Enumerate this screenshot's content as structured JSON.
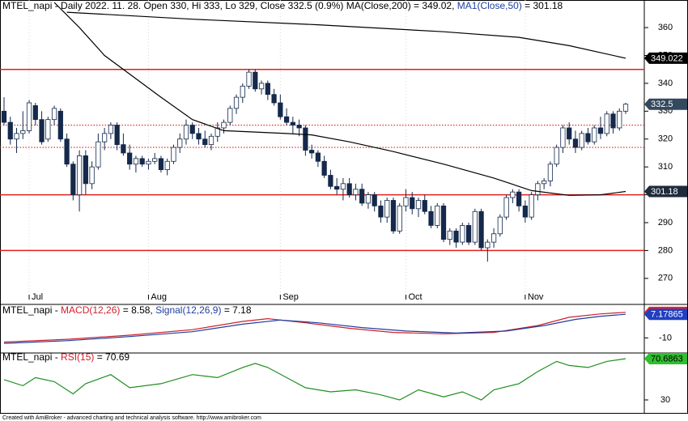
{
  "chart_data": [
    {
      "type": "candlestick",
      "title_parts": [
        {
          "text": "MTEL_napi - Daily 2022. 11. 28. Open 330, Hi 333, Lo 329, Close 332.5 (0.9%) MA(Close,200) = 349.02, ",
          "color": "#000000"
        },
        {
          "text": "MA1(Close,50)",
          "color": "#1f3f9f"
        },
        {
          "text": " = 301.18",
          "color": "#000000"
        }
      ],
      "up_color": "#ffffff",
      "down_color": "#14294b",
      "outline": "#14294b",
      "ohlc": [
        [
          330,
          335,
          325,
          326
        ],
        [
          326,
          328,
          318,
          320
        ],
        [
          320,
          324,
          315,
          322
        ],
        [
          322,
          330,
          320,
          323
        ],
        [
          323,
          334,
          322,
          333
        ],
        [
          332,
          333,
          325,
          327
        ],
        [
          327,
          330,
          318,
          319
        ],
        [
          320,
          328,
          319,
          327
        ],
        [
          327,
          332,
          325,
          331
        ],
        [
          330,
          331,
          319,
          320
        ],
        [
          320,
          322,
          310,
          311
        ],
        [
          311,
          312,
          298,
          300
        ],
        [
          300,
          316,
          294,
          314
        ],
        [
          314,
          316,
          300,
          304
        ],
        [
          304,
          312,
          302,
          310
        ],
        [
          310,
          322,
          309,
          319
        ],
        [
          319,
          324,
          316,
          322
        ],
        [
          322,
          326,
          320,
          325
        ],
        [
          325,
          326,
          316,
          318
        ],
        [
          318,
          322,
          314,
          315
        ],
        [
          315,
          318,
          309,
          311
        ],
        [
          311,
          314,
          308,
          313
        ],
        [
          313,
          314,
          310,
          311
        ],
        [
          311,
          313,
          309,
          312
        ],
        [
          312,
          315,
          311,
          313
        ],
        [
          313,
          314,
          308,
          309
        ],
        [
          309,
          313,
          307,
          312
        ],
        [
          312,
          318,
          311,
          317
        ],
        [
          317,
          322,
          315,
          320
        ],
        [
          320,
          327,
          318,
          325
        ],
        [
          325,
          326,
          320,
          322
        ],
        [
          322,
          324,
          318,
          320
        ],
        [
          320,
          323,
          317,
          318
        ],
        [
          318,
          322,
          316,
          321
        ],
        [
          321,
          326,
          319,
          324
        ],
        [
          324,
          327,
          322,
          326
        ],
        [
          326,
          332,
          325,
          331
        ],
        [
          331,
          336,
          329,
          335
        ],
        [
          335,
          340,
          333,
          339
        ],
        [
          339,
          345,
          338,
          344
        ],
        [
          344,
          345,
          337,
          338
        ],
        [
          338,
          341,
          336,
          340
        ],
        [
          340,
          341,
          334,
          336
        ],
        [
          336,
          338,
          332,
          333
        ],
        [
          333,
          336,
          327,
          328
        ],
        [
          328,
          331,
          325,
          326
        ],
        [
          326,
          328,
          322,
          325
        ],
        [
          325,
          327,
          321,
          324
        ],
        [
          324,
          325,
          314,
          316
        ],
        [
          316,
          318,
          313,
          315
        ],
        [
          315,
          316,
          310,
          312
        ],
        [
          312,
          314,
          306,
          307
        ],
        [
          307,
          309,
          302,
          303
        ],
        [
          303,
          306,
          300,
          302
        ],
        [
          302,
          306,
          298,
          304
        ],
        [
          304,
          306,
          299,
          300
        ],
        [
          300,
          304,
          298,
          302
        ],
        [
          302,
          304,
          296,
          297
        ],
        [
          297,
          301,
          295,
          300
        ],
        [
          300,
          301,
          294,
          296
        ],
        [
          296,
          298,
          290,
          292
        ],
        [
          292,
          299,
          290,
          298
        ],
        [
          298,
          299,
          286,
          287
        ],
        [
          287,
          297,
          286,
          296
        ],
        [
          296,
          302,
          294,
          299
        ],
        [
          299,
          301,
          293,
          295
        ],
        [
          295,
          299,
          292,
          298
        ],
        [
          298,
          300,
          293,
          294
        ],
        [
          294,
          296,
          288,
          289
        ],
        [
          289,
          297,
          288,
          296
        ],
        [
          296,
          297,
          283,
          284
        ],
        [
          284,
          288,
          282,
          287
        ],
        [
          287,
          288,
          281,
          283
        ],
        [
          283,
          290,
          282,
          289
        ],
        [
          289,
          290,
          282,
          283
        ],
        [
          283,
          295,
          282,
          294
        ],
        [
          294,
          295,
          280,
          281
        ],
        [
          281,
          284,
          276,
          283
        ],
        [
          283,
          288,
          281,
          286
        ],
        [
          286,
          293,
          285,
          292
        ],
        [
          292,
          300,
          291,
          299
        ],
        [
          299,
          302,
          297,
          301
        ],
        [
          301,
          302,
          294,
          296
        ],
        [
          296,
          298,
          290,
          292
        ],
        [
          292,
          301,
          291,
          300
        ],
        [
          300,
          305,
          298,
          304
        ],
        [
          304,
          306,
          302,
          305
        ],
        [
          305,
          312,
          303,
          311
        ],
        [
          311,
          318,
          310,
          317
        ],
        [
          317,
          325,
          315,
          324
        ],
        [
          324,
          326,
          318,
          320
        ],
        [
          320,
          323,
          315,
          317
        ],
        [
          317,
          323,
          316,
          322
        ],
        [
          322,
          324,
          318,
          319
        ],
        [
          319,
          325,
          318,
          324
        ],
        [
          324,
          328,
          320,
          322
        ],
        [
          322,
          330,
          321,
          329
        ],
        [
          329,
          330,
          322,
          324
        ],
        [
          324,
          331,
          323,
          330
        ],
        [
          330,
          333,
          329,
          332.5
        ]
      ],
      "close_label": {
        "value": 332.5,
        "color": "#34495e",
        "text_color": "#ffffff"
      },
      "series": [
        {
          "name": "MA(Close,200)",
          "color": "#000000",
          "x": [
            10,
            30,
            50,
            70,
            82,
            90,
            99
          ],
          "values": [
            365.5,
            363,
            361,
            358.5,
            356.5,
            353.5,
            349.022
          ],
          "label_color": "#000000",
          "label_text_color": "#ffffff"
        },
        {
          "name": "MA1(Close,50)",
          "color": "#000000",
          "x": [
            8,
            12,
            16,
            25,
            30,
            35,
            45,
            49,
            55,
            62,
            70,
            78,
            84,
            90,
            95,
            99
          ],
          "values": [
            369,
            360,
            350,
            335,
            327,
            323,
            322,
            321.5,
            319,
            315.5,
            311,
            306,
            301.5,
            299.8,
            300,
            301.18
          ],
          "label_color": "#1e2b3c",
          "label_text_color": "#ffffff"
        }
      ],
      "hlines": [
        {
          "value": 345,
          "style": "solid"
        },
        {
          "value": 325,
          "style": "dotted"
        },
        {
          "value": 317,
          "style": "dotted"
        },
        {
          "value": 300,
          "style": "solid"
        },
        {
          "value": 280,
          "style": "solid"
        }
      ],
      "hline_color": "#e0201b",
      "ylim": [
        262.4,
        369.9
      ],
      "yticks": [
        270,
        280,
        290,
        300,
        310,
        320,
        330,
        340,
        350,
        360
      ],
      "xticks": [
        {
          "value": 4,
          "label": "Jul"
        },
        {
          "value": 23,
          "label": "Aug"
        },
        {
          "value": 44,
          "label": "Sep"
        },
        {
          "value": 64,
          "label": "Oct"
        },
        {
          "value": 83,
          "label": "Nov"
        }
      ]
    },
    {
      "type": "line",
      "title_parts": [
        {
          "text": "MTEL_napi - ",
          "color": "#000000"
        },
        {
          "text": "MACD(12,26)",
          "color": "#d0202a"
        },
        {
          "text": " = 8.58, ",
          "color": "#000000"
        },
        {
          "text": "Signal(12,26,9)",
          "color": "#1f3f9f"
        },
        {
          "text": " = 7.18",
          "color": "#000000"
        }
      ],
      "series": [
        {
          "name": "MACD(12,26)",
          "color": "#d0202a",
          "x": [
            0,
            10,
            20,
            30,
            38,
            42,
            48,
            55,
            62,
            70,
            78,
            85,
            90,
            95,
            99
          ],
          "values": [
            -13,
            -11,
            -8,
            -4,
            2,
            4,
            1,
            -3,
            -6,
            -7,
            -6,
            -1,
            5,
            7.5,
            8.58355
          ],
          "label_color": "#e8202a",
          "label_text_color": "#000000"
        },
        {
          "name": "Signal(12,26,9)",
          "color": "#1f3f9f",
          "x": [
            0,
            10,
            20,
            30,
            38,
            44,
            50,
            57,
            64,
            72,
            80,
            86,
            91,
            95,
            99
          ],
          "values": [
            -14,
            -12,
            -9,
            -5.5,
            0,
            3,
            1,
            -2.5,
            -5,
            -6.5,
            -5,
            -1,
            3.5,
            5.8,
            7.17865
          ],
          "label_color": "#2040c0",
          "label_text_color": "#ffffff"
        }
      ],
      "ylim": [
        -20.4,
        13.8
      ],
      "yticks": [
        -10
      ]
    },
    {
      "type": "line",
      "title_parts": [
        {
          "text": "MTEL_napi - ",
          "color": "#000000"
        },
        {
          "text": "RSI(15)",
          "color": "#d0202a"
        },
        {
          "text": " = 70.69",
          "color": "#000000"
        }
      ],
      "series": [
        {
          "name": "RSI(15)",
          "color": "#1f8f1f",
          "x": [
            0,
            3,
            5,
            8,
            11,
            13,
            17,
            20,
            25,
            30,
            34,
            38,
            40,
            42,
            45,
            48,
            52,
            56,
            60,
            63,
            66,
            70,
            73,
            76,
            78,
            82,
            85,
            88,
            90,
            93,
            96,
            99
          ],
          "values": [
            50,
            44,
            52,
            48,
            36,
            46,
            55,
            42,
            46,
            55,
            52,
            62,
            66,
            62,
            52,
            42,
            38,
            40,
            35,
            30,
            40,
            33,
            38,
            30,
            40,
            46,
            58,
            68,
            64,
            62,
            68,
            70.6863
          ],
          "label_color": "#2fbf2f",
          "label_text_color": "#000000"
        }
      ],
      "ylim": [
        17.2,
        75.5
      ],
      "yticks": [
        30
      ]
    }
  ],
  "footer": "Created with AmiBroker - advanced charting and technical analysis software. http://www.amibroker.com"
}
